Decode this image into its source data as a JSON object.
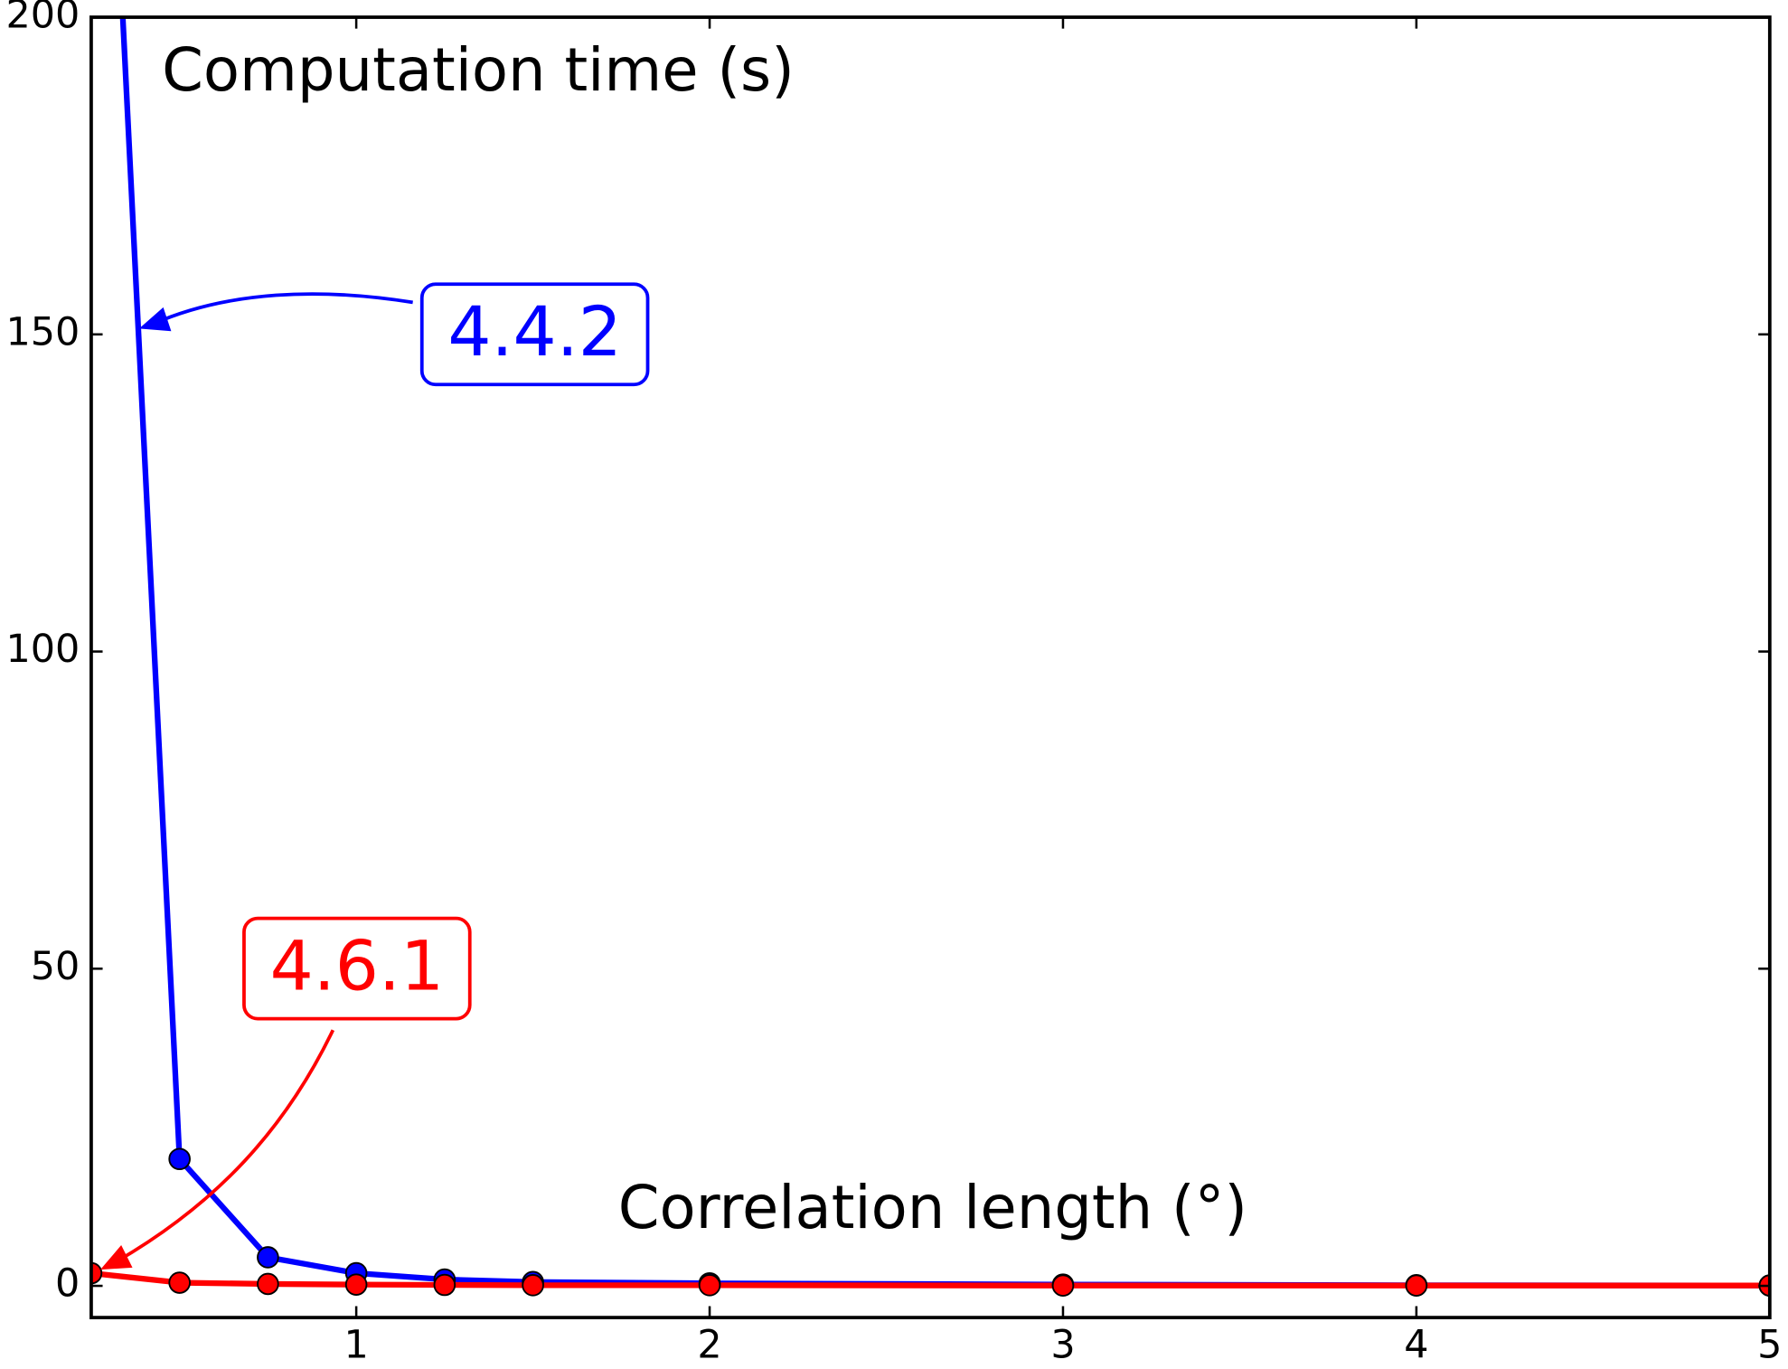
{
  "chart_data": {
    "type": "line",
    "title": "Computation time (s)",
    "x_label": "Correlation length (°)",
    "x": [
      0.25,
      0.5,
      0.75,
      1,
      1.25,
      1.5,
      2,
      3,
      4,
      5
    ],
    "series": [
      {
        "name": "4.4.2",
        "color": "#0000ff",
        "values": [
          300,
          20,
          4.5,
          2,
          1,
          0.6,
          0.4,
          0.2,
          0.1,
          0.05
        ]
      },
      {
        "name": "4.6.1",
        "color": "#ff0000",
        "values": [
          2,
          0.5,
          0.3,
          0.2,
          0.15,
          0.1,
          0.1,
          0.05,
          0.05,
          0.05
        ]
      }
    ],
    "xlim": [
      0.25,
      5
    ],
    "xticks": [
      1,
      2,
      3,
      4,
      5
    ],
    "ylim": [
      -5,
      200
    ],
    "yticks": [
      0,
      50,
      100,
      150,
      200
    ]
  }
}
